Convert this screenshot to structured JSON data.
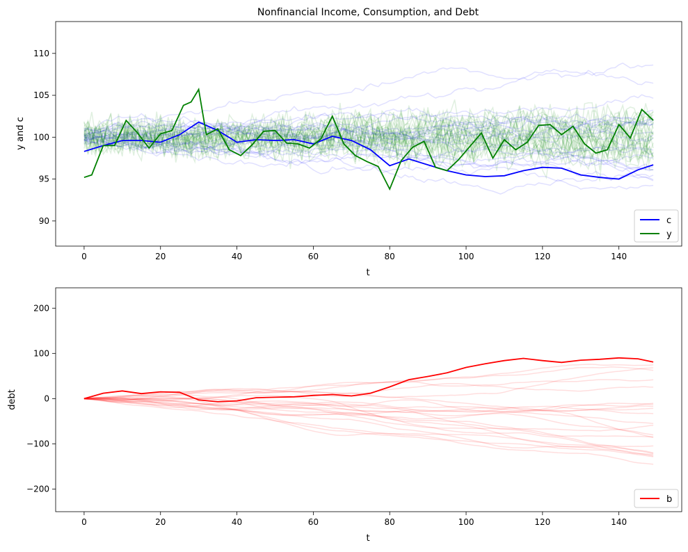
{
  "chart_data": [
    {
      "type": "line",
      "title": "Nonfinancial Income, Consumption, and Debt",
      "xlabel": "t",
      "ylabel": "y and c",
      "xlim": [
        -7.45,
        156.45
      ],
      "ylim": [
        87.0,
        113.8
      ],
      "xticks": [
        0,
        20,
        40,
        60,
        80,
        100,
        120,
        140
      ],
      "yticks": [
        90,
        95,
        100,
        105,
        110
      ],
      "legend_placement": "lower right",
      "grid": false,
      "legend": [
        {
          "label": "c",
          "color": "#0000ff"
        },
        {
          "label": "y",
          "color": "#008000"
        }
      ],
      "series": [
        {
          "name": "c",
          "color": "#0000ff",
          "x": [
            0,
            5,
            10,
            15,
            20,
            25,
            30,
            35,
            40,
            45,
            50,
            55,
            60,
            65,
            70,
            75,
            80,
            85,
            90,
            95,
            100,
            105,
            110,
            115,
            120,
            125,
            130,
            135,
            140,
            145,
            149
          ],
          "values": [
            98.3,
            99.0,
            99.6,
            99.6,
            99.4,
            100.3,
            101.8,
            100.8,
            99.4,
            99.7,
            99.6,
            99.7,
            99.2,
            100.1,
            99.6,
            98.5,
            96.6,
            97.4,
            96.7,
            96.0,
            95.5,
            95.3,
            95.4,
            96.0,
            96.4,
            96.3,
            95.5,
            95.2,
            95.0,
            96.1,
            96.7
          ]
        },
        {
          "name": "y",
          "color": "#008000",
          "x": [
            0,
            2,
            5,
            8,
            11,
            14,
            17,
            20,
            23,
            26,
            28,
            30,
            32,
            35,
            38,
            41,
            44,
            47,
            50,
            53,
            56,
            59,
            62,
            65,
            68,
            71,
            74,
            77,
            80,
            83,
            86,
            89,
            92,
            95,
            98,
            101,
            104,
            107,
            110,
            113,
            116,
            119,
            122,
            125,
            128,
            131,
            134,
            137,
            140,
            143,
            146,
            149
          ],
          "values": [
            95.2,
            95.5,
            99.0,
            99.0,
            102.0,
            100.5,
            98.7,
            100.4,
            100.8,
            103.8,
            104.2,
            105.7,
            100.3,
            101.0,
            98.5,
            97.8,
            99.1,
            100.7,
            100.8,
            99.3,
            99.2,
            98.7,
            99.8,
            102.5,
            99.2,
            97.8,
            97.1,
            96.5,
            93.8,
            97.2,
            98.8,
            99.5,
            96.4,
            96.0,
            97.3,
            98.9,
            100.5,
            97.5,
            99.7,
            98.5,
            99.4,
            101.4,
            101.5,
            100.3,
            101.3,
            99.2,
            98.1,
            98.5,
            101.5,
            99.9,
            103.3,
            102.0
          ]
        }
      ]
    },
    {
      "type": "line",
      "title": "",
      "xlabel": "t",
      "ylabel": "debt",
      "xlim": [
        -7.45,
        156.45
      ],
      "ylim": [
        -250,
        245
      ],
      "xticks": [
        0,
        20,
        40,
        60,
        80,
        100,
        120,
        140
      ],
      "yticks": [
        -200,
        -100,
        0,
        100,
        200
      ],
      "ytick_labels": [
        "−200",
        "−100",
        "0",
        "100",
        "200"
      ],
      "legend_placement": "lower right",
      "grid": false,
      "legend": [
        {
          "label": "b",
          "color": "#ff0000"
        }
      ],
      "series": [
        {
          "name": "b",
          "color": "#ff0000",
          "x": [
            0,
            5,
            10,
            15,
            20,
            25,
            30,
            35,
            40,
            45,
            50,
            55,
            60,
            65,
            70,
            75,
            80,
            85,
            90,
            95,
            100,
            105,
            110,
            115,
            120,
            125,
            130,
            135,
            140,
            145,
            149
          ],
          "values": [
            0,
            12,
            17,
            11,
            15,
            14,
            -3,
            -7,
            -5,
            2,
            3,
            4,
            7,
            9,
            6,
            12,
            26,
            42,
            49,
            57,
            69,
            77,
            84,
            89,
            84,
            80,
            85,
            87,
            90,
            88,
            81
          ]
        }
      ]
    }
  ]
}
